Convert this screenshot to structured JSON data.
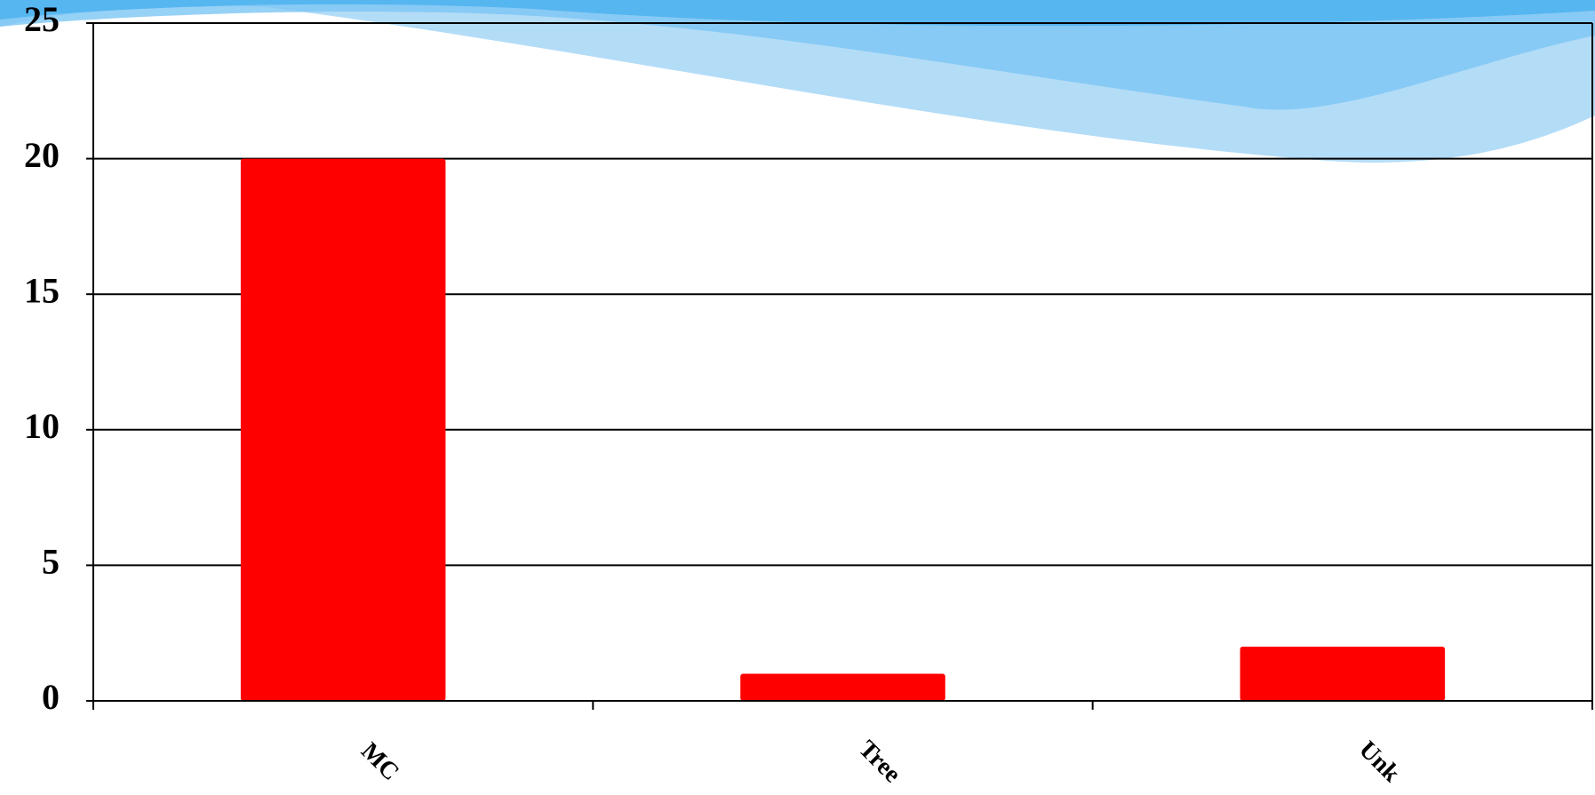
{
  "chart_data": {
    "type": "bar",
    "categories": [
      "MC",
      "Tree",
      "Unk"
    ],
    "values": [
      20,
      1,
      2
    ],
    "color": "#ff0000",
    "ylim": [
      0,
      25
    ],
    "yticks": [
      0,
      5,
      10,
      15,
      20,
      25
    ],
    "grid": true
  }
}
